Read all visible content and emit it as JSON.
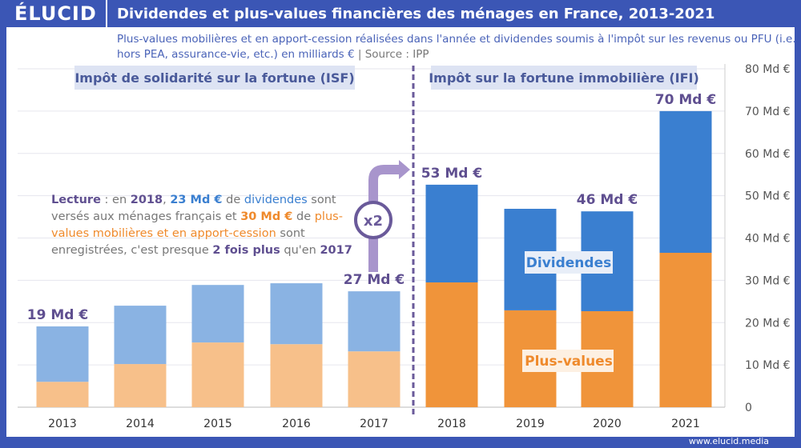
{
  "header": {
    "logo": "ÉLUCID",
    "title": "Dividendes et plus-values financières des ménages en France, 2013-2021"
  },
  "subtitle": "Plus-values mobilières et en apport-cession réalisées dans l'année et dividendes soumis à l'impôt sur les revenus ou PFU (i.e. hors PEA, assurance-vie, etc.) en milliards €",
  "source": "|  Source : IPP",
  "footer": "www.elucid.media",
  "lecture": {
    "w1": "Lecture",
    "t1": " : en ",
    "w2": "2018",
    "t2": ", ",
    "w3": "23 Md €",
    "t3": " de ",
    "w4": "dividendes",
    "t4": " sont versés aux ménages français et ",
    "w5": "30 Md €",
    "t5": " de ",
    "w6": "plus-values mobilières et en apport-cession",
    "t6": " sont enregistrées, c'est presque ",
    "w7": "2 fois plus",
    "t7": " qu'en ",
    "w8": "2017"
  },
  "multiplier": "x2",
  "colors": {
    "header": "#3b56b5",
    "isf_div": "#8ab3e3",
    "isf_pv": "#f7c08a",
    "ifi_div": "#3a7fd0",
    "ifi_pv": "#f0943a",
    "accent": "#6a5a9a"
  },
  "chart_data": {
    "type": "bar",
    "stacked": true,
    "categories": [
      "2013",
      "2014",
      "2015",
      "2016",
      "2017",
      "2018",
      "2019",
      "2020",
      "2021"
    ],
    "series": [
      {
        "name": "Plus-values",
        "values": [
          6,
          10.2,
          15.3,
          14.9,
          13.2,
          29.5,
          22.9,
          22.7,
          36.5
        ]
      },
      {
        "name": "Dividendes",
        "values": [
          13.1,
          13.8,
          13.6,
          14.4,
          14.2,
          23.1,
          24,
          23.6,
          33.5
        ]
      }
    ],
    "totals_labels": {
      "2013": "19 Md €",
      "2017": "27 Md €",
      "2018": "53 Md €",
      "2020": "46 Md €",
      "2021": "70 Md €"
    },
    "regimes": [
      {
        "label": "Impôt de solidarité sur la fortune (ISF)",
        "years": "2013-2017"
      },
      {
        "label": "Impôt sur la fortune immobilière (IFI)",
        "years": "2018-2021"
      }
    ],
    "yticks": [
      "0",
      "10 Md €",
      "20 Md €",
      "30 Md €",
      "40 Md €",
      "50 Md €",
      "60 Md €",
      "70 Md €",
      "80 Md €"
    ],
    "ylim": [
      0,
      80
    ],
    "y_axis": "right",
    "grid": true
  }
}
